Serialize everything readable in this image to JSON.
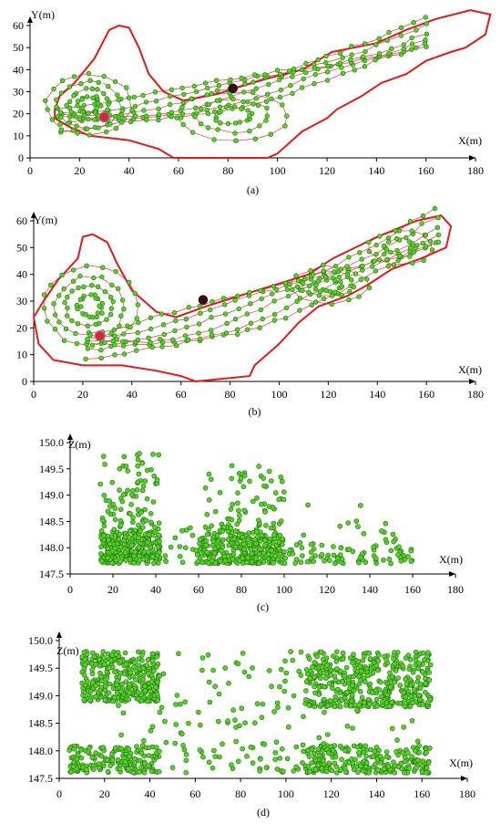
{
  "chart_data": [
    {
      "id": "a",
      "type": "scatter",
      "panel_label": "(a)",
      "xlabel": "X(m)",
      "ylabel": "Y(m)",
      "xlim": [
        0,
        180
      ],
      "ylim": [
        0,
        60
      ],
      "xticks": [
        0,
        20,
        40,
        60,
        80,
        100,
        120,
        140,
        160,
        180
      ],
      "yticks": [
        0,
        10,
        20,
        30,
        40,
        50,
        60
      ],
      "colors": {
        "boundary": "#e01b1b",
        "points": "#5ad12a",
        "tracks": "#e01b1b"
      },
      "boundary": [
        [
          10,
          22
        ],
        [
          12,
          28
        ],
        [
          18,
          34
        ],
        [
          26,
          45
        ],
        [
          32,
          58
        ],
        [
          36,
          60
        ],
        [
          40,
          59
        ],
        [
          44,
          50
        ],
        [
          48,
          38
        ],
        [
          54,
          30
        ],
        [
          62,
          26
        ],
        [
          76,
          29
        ],
        [
          84,
          32
        ],
        [
          96,
          36
        ],
        [
          110,
          40
        ],
        [
          122,
          48
        ],
        [
          140,
          52
        ],
        [
          152,
          58
        ],
        [
          164,
          63
        ],
        [
          178,
          67
        ],
        [
          186,
          65
        ],
        [
          184,
          56
        ],
        [
          176,
          50
        ],
        [
          170,
          48
        ],
        [
          160,
          44
        ],
        [
          152,
          38
        ],
        [
          142,
          34
        ],
        [
          134,
          28
        ],
        [
          124,
          22
        ],
        [
          120,
          18
        ],
        [
          110,
          12
        ],
        [
          104,
          6
        ],
        [
          100,
          2
        ],
        [
          96,
          0
        ],
        [
          58,
          0
        ],
        [
          52,
          4
        ],
        [
          40,
          8
        ],
        [
          24,
          10
        ],
        [
          16,
          14
        ],
        [
          10,
          18
        ],
        [
          10,
          22
        ]
      ],
      "markers": [
        {
          "x": 82,
          "y": 31.5,
          "kind": "dark"
        },
        {
          "x": 30,
          "y": 18.5,
          "kind": "red"
        }
      ],
      "clusters": [
        {
          "cx": 24,
          "cy": 24,
          "rx": 17,
          "ry": 14,
          "rings": 4,
          "n": 18
        },
        {
          "cx": 82,
          "cy": 19,
          "rx": 22,
          "ry": 11,
          "rings": 3,
          "n": 16
        }
      ],
      "tracks_from": [
        12,
        18
      ],
      "tracks_to": [
        160,
        56
      ],
      "track_count": 6,
      "track_points": 30
    },
    {
      "id": "b",
      "type": "scatter",
      "panel_label": "(b)",
      "xlabel": "X(m)",
      "ylabel": "Y(m)",
      "xlim": [
        0,
        180
      ],
      "ylim": [
        0,
        60
      ],
      "xticks": [
        0,
        20,
        40,
        60,
        80,
        100,
        120,
        140,
        160,
        180
      ],
      "yticks": [
        0,
        10,
        20,
        30,
        40,
        50,
        60
      ],
      "colors": {
        "boundary": "#e01b1b",
        "points": "#5ad12a",
        "tracks": "#e01b1b"
      },
      "boundary": [
        [
          0,
          24
        ],
        [
          4,
          30
        ],
        [
          10,
          38
        ],
        [
          18,
          46
        ],
        [
          20,
          54
        ],
        [
          24,
          55
        ],
        [
          30,
          52
        ],
        [
          34,
          44
        ],
        [
          40,
          34
        ],
        [
          50,
          26
        ],
        [
          58,
          24
        ],
        [
          70,
          28
        ],
        [
          84,
          32
        ],
        [
          98,
          36
        ],
        [
          112,
          40
        ],
        [
          122,
          46
        ],
        [
          140,
          54
        ],
        [
          156,
          60
        ],
        [
          166,
          62
        ],
        [
          170,
          58
        ],
        [
          168,
          50
        ],
        [
          158,
          46
        ],
        [
          146,
          42
        ],
        [
          136,
          36
        ],
        [
          128,
          32
        ],
        [
          116,
          28
        ],
        [
          108,
          22
        ],
        [
          100,
          14
        ],
        [
          90,
          6
        ],
        [
          88,
          2
        ],
        [
          66,
          0
        ],
        [
          60,
          2
        ],
        [
          50,
          4
        ],
        [
          36,
          6
        ],
        [
          20,
          6
        ],
        [
          8,
          8
        ],
        [
          2,
          14
        ],
        [
          0,
          24
        ]
      ],
      "markers": [
        {
          "x": 69,
          "y": 30.5,
          "kind": "dark"
        },
        {
          "x": 27,
          "y": 17,
          "kind": "red"
        }
      ],
      "clusters": [
        {
          "cx": 23,
          "cy": 28,
          "rx": 19,
          "ry": 15,
          "rings": 4,
          "n": 20
        },
        {
          "cx": 120,
          "cy": 36,
          "rx": 16,
          "ry": 7,
          "rings": 3,
          "n": 14
        },
        {
          "cx": 150,
          "cy": 50,
          "rx": 13,
          "ry": 6,
          "rings": 2,
          "n": 12
        }
      ],
      "tracks_from": [
        22,
        14
      ],
      "tracks_to": [
        164,
        57
      ],
      "track_count": 6,
      "track_points": 28
    },
    {
      "id": "c",
      "type": "scatter",
      "panel_label": "(c)",
      "xlabel": "X(m)",
      "ylabel": "Z(m)",
      "xlim": [
        0,
        180
      ],
      "ylim": [
        147.5,
        150.0
      ],
      "xticks": [
        0,
        20,
        40,
        60,
        80,
        100,
        120,
        140,
        160,
        180
      ],
      "yticks": [
        147.5,
        148.0,
        148.5,
        149.0,
        149.5,
        150.0
      ],
      "ytick_labels": [
        "147.5",
        "148.0",
        "148.5",
        "149.0",
        "149.5",
        "150.0"
      ],
      "colors": {
        "points": "#5ad12a"
      },
      "groups": [
        {
          "x": [
            14,
            42
          ],
          "z": [
            147.7,
            148.3
          ],
          "n": 260
        },
        {
          "x": [
            14,
            42
          ],
          "z": [
            148.3,
            149.8
          ],
          "n": 95
        },
        {
          "x": [
            60,
            100
          ],
          "z": [
            147.7,
            148.3
          ],
          "n": 290
        },
        {
          "x": [
            62,
            100
          ],
          "z": [
            148.3,
            149.6
          ],
          "n": 80
        },
        {
          "x": [
            100,
            162
          ],
          "z": [
            147.7,
            148.1
          ],
          "n": 80
        },
        {
          "x": [
            106,
            156
          ],
          "z": [
            148.1,
            148.9
          ],
          "n": 16
        },
        {
          "x": [
            42,
            60
          ],
          "z": [
            147.7,
            148.4
          ],
          "n": 18
        }
      ]
    },
    {
      "id": "d",
      "type": "scatter",
      "panel_label": "(d)",
      "xlabel": "X(m)",
      "ylabel": "Z(m)",
      "xlim": [
        0,
        180
      ],
      "ylim": [
        147.5,
        150.0
      ],
      "xticks": [
        0,
        20,
        40,
        60,
        80,
        100,
        120,
        140,
        160,
        180
      ],
      "yticks": [
        147.5,
        148.0,
        148.5,
        149.0,
        149.5,
        150.0
      ],
      "ytick_labels": [
        "147.5",
        "148.0",
        "148.5",
        "149.0",
        "149.5",
        "150.0"
      ],
      "colors": {
        "points": "#5ad12a"
      },
      "groups": [
        {
          "x": [
            10,
            44
          ],
          "z": [
            148.9,
            149.8
          ],
          "n": 330
        },
        {
          "x": [
            4,
            44
          ],
          "z": [
            147.6,
            148.1
          ],
          "n": 170
        },
        {
          "x": [
            108,
            164
          ],
          "z": [
            148.8,
            149.8
          ],
          "n": 430
        },
        {
          "x": [
            108,
            164
          ],
          "z": [
            147.6,
            148.1
          ],
          "n": 230
        },
        {
          "x": [
            44,
            108
          ],
          "z": [
            148.5,
            149.8
          ],
          "n": 55
        },
        {
          "x": [
            44,
            108
          ],
          "z": [
            147.6,
            148.1
          ],
          "n": 45
        },
        {
          "x": [
            4,
            164
          ],
          "z": [
            148.1,
            148.9
          ],
          "n": 40
        }
      ]
    }
  ]
}
